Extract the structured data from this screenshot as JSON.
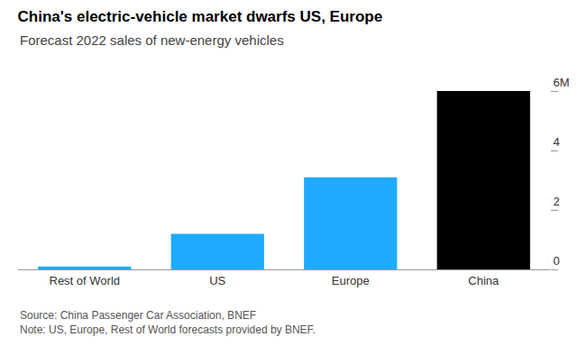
{
  "chart_data": {
    "type": "bar",
    "title": "China's electric-vehicle market dwarfs US, Europe",
    "subtitle": "Forecast 2022 sales of new-energy vehicles",
    "categories": [
      "Rest of World",
      "US",
      "Europe",
      "China"
    ],
    "values": [
      0.1,
      1.2,
      3.1,
      6.0
    ],
    "colors": [
      "#1fabff",
      "#1fabff",
      "#1fabff",
      "#000000"
    ],
    "ylim": [
      0,
      6
    ],
    "yticks": [
      0,
      2,
      4,
      {
        "value": 6,
        "label": "6M"
      }
    ],
    "grid": false,
    "annotations": [
      "Source: China Passenger Car Association, BNEF",
      "Note: US, Europe, Rest of World forecasts provided by BNEF."
    ]
  }
}
